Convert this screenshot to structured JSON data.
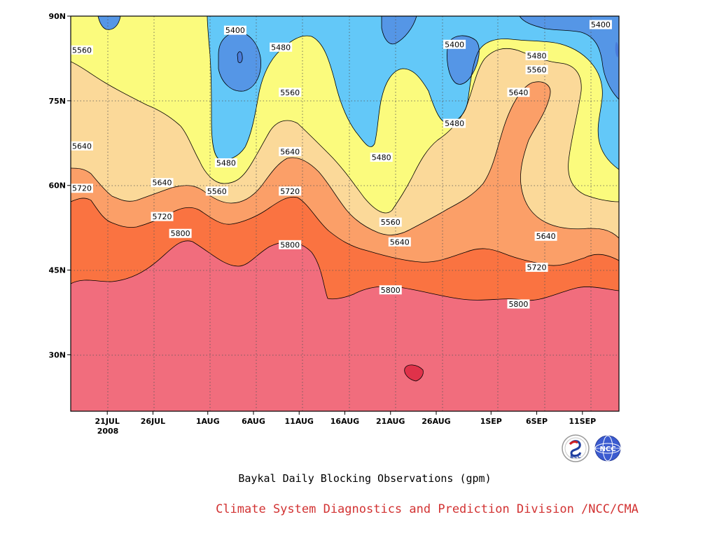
{
  "chart_data": {
    "type": "contour",
    "xlabel": "Baykal Daily Blocking Observations (gpm)",
    "credit": "Climate System Diagnostics and Prediction Division /NCC/CMA",
    "year_label": "2008",
    "x_ticks": [
      "21JUL",
      "26JUL",
      "1AUG",
      "6AUG",
      "11AUG",
      "16AUG",
      "21AUG",
      "26AUG",
      "1SEP",
      "6SEP",
      "11SEP"
    ],
    "y_ticks": [
      "30N",
      "45N",
      "60N",
      "75N",
      "90N"
    ],
    "x_range": [
      "2008-07-17",
      "2008-09-15"
    ],
    "y_range": [
      20,
      90
    ],
    "contour_levels": [
      5400,
      5480,
      5560,
      5640,
      5720,
      5800
    ],
    "fill_colors": {
      "below_5400": "#4a7ddc",
      "5400_5480": "#5596e6",
      "5480_5560": "#63c8f8",
      "5560_5640": "#fbfb7d",
      "5640_5720": "#fbd999",
      "5720_5800": "#fb9f68",
      "5800_5880": "#fa7341",
      "above_5880": "#f16d7d",
      "peak": "#e0324a"
    },
    "grid": "dotted",
    "contour_labels": [
      {
        "value": "5400",
        "lon_day": "4AUG",
        "lat": 87.5
      },
      {
        "value": "5480",
        "lon_day": "9AUG",
        "lat": 84.5
      },
      {
        "value": "5560",
        "lon_day": "17JUL",
        "lat": 84
      },
      {
        "value": "5560",
        "lon_day": "10AUG",
        "lat": 76.5
      },
      {
        "value": "5480",
        "lon_day": "3AUG",
        "lat": 64
      },
      {
        "value": "5640",
        "lon_day": "17JUL",
        "lat": 67
      },
      {
        "value": "5640",
        "lon_day": "10AUG",
        "lat": 66
      },
      {
        "value": "5480",
        "lon_day": "20AUG",
        "lat": 65
      },
      {
        "value": "5400",
        "lon_day": "28AUG",
        "lat": 85
      },
      {
        "value": "5480",
        "lon_day": "28AUG",
        "lat": 71
      },
      {
        "value": "5400",
        "lon_day": "13SEP",
        "lat": 88.5
      },
      {
        "value": "5480",
        "lon_day": "6SEP",
        "lat": 83
      },
      {
        "value": "5560",
        "lon_day": "6SEP",
        "lat": 80.5
      },
      {
        "value": "5640",
        "lon_day": "4SEP",
        "lat": 76.5
      },
      {
        "value": "5720",
        "lon_day": "17JUL",
        "lat": 59.5
      },
      {
        "value": "5640",
        "lon_day": "27JUL",
        "lat": 60.5
      },
      {
        "value": "5560",
        "lon_day": "2AUG",
        "lat": 59
      },
      {
        "value": "5720",
        "lon_day": "10AUG",
        "lat": 59
      },
      {
        "value": "5720",
        "lon_day": "27JUL",
        "lat": 54.5
      },
      {
        "value": "5800",
        "lon_day": "29JUL",
        "lat": 51.5
      },
      {
        "value": "5800",
        "lon_day": "10AUG",
        "lat": 49.5
      },
      {
        "value": "5560",
        "lon_day": "21AUG",
        "lat": 53.5
      },
      {
        "value": "5640",
        "lon_day": "22AUG",
        "lat": 50
      },
      {
        "value": "5800",
        "lon_day": "21AUG",
        "lat": 41.5
      },
      {
        "value": "5640",
        "lon_day": "7SEP",
        "lat": 51
      },
      {
        "value": "5720",
        "lon_day": "6SEP",
        "lat": 45.5
      },
      {
        "value": "5800",
        "lon_day": "4SEP",
        "lat": 39
      }
    ]
  }
}
